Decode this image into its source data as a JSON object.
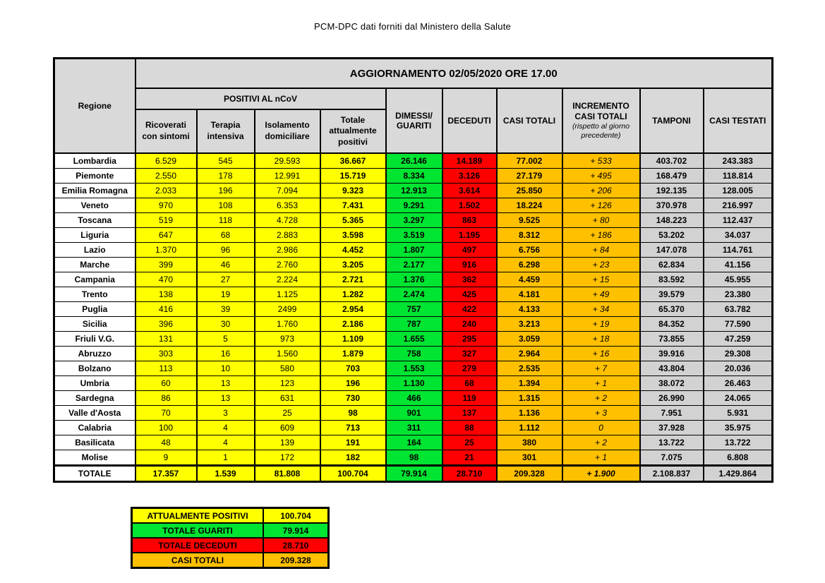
{
  "title": "PCM-DPC dati forniti dal Ministero della Salute",
  "colors": {
    "yellow": "#FFFF00",
    "green": "#00E432",
    "red": "#FF0000",
    "orange": "#FFC000",
    "gray": "#D2D2D2",
    "header_gray": "#D9D9D9"
  },
  "table": {
    "region_header": "Regione",
    "update_header": "AGGIORNAMENTO 02/05/2020 ORE 17.00",
    "positivi_group_header": "POSITIVI AL nCoV",
    "col_headers": {
      "ricoverati": "Ricoverati con sintomi",
      "terapia": "Terapia intensiva",
      "isolamento": "Isolamento domiciliare",
      "totale_positivi": "Totale attualmente positivi",
      "guariti": "DIMESSI/ GUARITI",
      "deceduti": "DECEDUTI",
      "casi_totali": "CASI TOTALI",
      "incremento": "INCREMENTO CASI TOTALI",
      "incremento_note": "(rispetto al giorno precedente)",
      "tamponi": "TAMPONI",
      "casi_testati": "CASI TESTATI"
    },
    "rows": [
      {
        "region": "Lombardia",
        "ricoverati": "6.529",
        "terapia": "545",
        "isolamento": "29.593",
        "totale_positivi": "36.667",
        "guariti": "26.146",
        "deceduti": "14.189",
        "casi_totali": "77.002",
        "incremento": "+ 533",
        "tamponi": "403.702",
        "casi_testati": "243.383"
      },
      {
        "region": "Piemonte",
        "ricoverati": "2.550",
        "terapia": "178",
        "isolamento": "12.991",
        "totale_positivi": "15.719",
        "guariti": "8.334",
        "deceduti": "3.126",
        "casi_totali": "27.179",
        "incremento": "+ 495",
        "tamponi": "168.479",
        "casi_testati": "118.814"
      },
      {
        "region": "Emilia Romagna",
        "ricoverati": "2.033",
        "terapia": "196",
        "isolamento": "7.094",
        "totale_positivi": "9.323",
        "guariti": "12.913",
        "deceduti": "3.614",
        "casi_totali": "25.850",
        "incremento": "+ 206",
        "tamponi": "192.135",
        "casi_testati": "128.005"
      },
      {
        "region": "Veneto",
        "ricoverati": "970",
        "terapia": "108",
        "isolamento": "6.353",
        "totale_positivi": "7.431",
        "guariti": "9.291",
        "deceduti": "1.502",
        "casi_totali": "18.224",
        "incremento": "+ 126",
        "tamponi": "370.978",
        "casi_testati": "216.997"
      },
      {
        "region": "Toscana",
        "ricoverati": "519",
        "terapia": "118",
        "isolamento": "4.728",
        "totale_positivi": "5.365",
        "guariti": "3.297",
        "deceduti": "863",
        "casi_totali": "9.525",
        "incremento": "+ 80",
        "tamponi": "148.223",
        "casi_testati": "112.437"
      },
      {
        "region": "Liguria",
        "ricoverati": "647",
        "terapia": "68",
        "isolamento": "2.883",
        "totale_positivi": "3.598",
        "guariti": "3.519",
        "deceduti": "1.195",
        "casi_totali": "8.312",
        "incremento": "+ 186",
        "tamponi": "53.202",
        "casi_testati": "34.037"
      },
      {
        "region": "Lazio",
        "ricoverati": "1.370",
        "terapia": "96",
        "isolamento": "2.986",
        "totale_positivi": "4.452",
        "guariti": "1.807",
        "deceduti": "497",
        "casi_totali": "6.756",
        "incremento": "+ 84",
        "tamponi": "147.078",
        "casi_testati": "114.761"
      },
      {
        "region": "Marche",
        "ricoverati": "399",
        "terapia": "46",
        "isolamento": "2.760",
        "totale_positivi": "3.205",
        "guariti": "2.177",
        "deceduti": "916",
        "casi_totali": "6.298",
        "incremento": "+ 23",
        "tamponi": "62.834",
        "casi_testati": "41.156"
      },
      {
        "region": "Campania",
        "ricoverati": "470",
        "terapia": "27",
        "isolamento": "2.224",
        "totale_positivi": "2.721",
        "guariti": "1.376",
        "deceduti": "362",
        "casi_totali": "4.459",
        "incremento": "+ 15",
        "tamponi": "83.592",
        "casi_testati": "45.955"
      },
      {
        "region": "Trento",
        "ricoverati": "138",
        "terapia": "19",
        "isolamento": "1.125",
        "totale_positivi": "1.282",
        "guariti": "2.474",
        "deceduti": "425",
        "casi_totali": "4.181",
        "incremento": "+ 49",
        "tamponi": "39.579",
        "casi_testati": "23.380"
      },
      {
        "region": "Puglia",
        "ricoverati": "416",
        "terapia": "39",
        "isolamento": "2499",
        "totale_positivi": "2.954",
        "guariti": "757",
        "deceduti": "422",
        "casi_totali": "4.133",
        "incremento": "+ 34",
        "tamponi": "65.370",
        "casi_testati": "63.782"
      },
      {
        "region": "Sicilia",
        "ricoverati": "396",
        "terapia": "30",
        "isolamento": "1.760",
        "totale_positivi": "2.186",
        "guariti": "787",
        "deceduti": "240",
        "casi_totali": "3.213",
        "incremento": "+ 19",
        "tamponi": "84.352",
        "casi_testati": "77.590"
      },
      {
        "region": "Friuli V.G.",
        "ricoverati": "131",
        "terapia": "5",
        "isolamento": "973",
        "totale_positivi": "1.109",
        "guariti": "1.655",
        "deceduti": "295",
        "casi_totali": "3.059",
        "incremento": "+ 18",
        "tamponi": "73.855",
        "casi_testati": "47.259"
      },
      {
        "region": "Abruzzo",
        "ricoverati": "303",
        "terapia": "16",
        "isolamento": "1.560",
        "totale_positivi": "1.879",
        "guariti": "758",
        "deceduti": "327",
        "casi_totali": "2.964",
        "incremento": "+ 16",
        "tamponi": "39.916",
        "casi_testati": "29.308"
      },
      {
        "region": "Bolzano",
        "ricoverati": "113",
        "terapia": "10",
        "isolamento": "580",
        "totale_positivi": "703",
        "guariti": "1.553",
        "deceduti": "279",
        "casi_totali": "2.535",
        "incremento": "+ 7",
        "tamponi": "43.804",
        "casi_testati": "20.036"
      },
      {
        "region": "Umbria",
        "ricoverati": "60",
        "terapia": "13",
        "isolamento": "123",
        "totale_positivi": "196",
        "guariti": "1.130",
        "deceduti": "68",
        "casi_totali": "1.394",
        "incremento": "+ 1",
        "tamponi": "38.072",
        "casi_testati": "26.463"
      },
      {
        "region": "Sardegna",
        "ricoverati": "86",
        "terapia": "13",
        "isolamento": "631",
        "totale_positivi": "730",
        "guariti": "466",
        "deceduti": "119",
        "casi_totali": "1.315",
        "incremento": "+ 2",
        "tamponi": "26.990",
        "casi_testati": "24.065"
      },
      {
        "region": "Valle d'Aosta",
        "ricoverati": "70",
        "terapia": "3",
        "isolamento": "25",
        "totale_positivi": "98",
        "guariti": "901",
        "deceduti": "137",
        "casi_totali": "1.136",
        "incremento": "+ 3",
        "tamponi": "7.951",
        "casi_testati": "5.931"
      },
      {
        "region": "Calabria",
        "ricoverati": "100",
        "terapia": "4",
        "isolamento": "609",
        "totale_positivi": "713",
        "guariti": "311",
        "deceduti": "88",
        "casi_totali": "1.112",
        "incremento": "0",
        "tamponi": "37.928",
        "casi_testati": "35.975"
      },
      {
        "region": "Basilicata",
        "ricoverati": "48",
        "terapia": "4",
        "isolamento": "139",
        "totale_positivi": "191",
        "guariti": "164",
        "deceduti": "25",
        "casi_totali": "380",
        "incremento": "+ 2",
        "tamponi": "13.722",
        "casi_testati": "13.722"
      },
      {
        "region": "Molise",
        "ricoverati": "9",
        "terapia": "1",
        "isolamento": "172",
        "totale_positivi": "182",
        "guariti": "98",
        "deceduti": "21",
        "casi_totali": "301",
        "incremento": "+ 1",
        "tamponi": "7.075",
        "casi_testati": "6.808"
      },
      {
        "region": "TOTALE",
        "ricoverati": "17.357",
        "terapia": "1.539",
        "isolamento": "81.808",
        "totale_positivi": "100.704",
        "guariti": "79.914",
        "deceduti": "28.710",
        "casi_totali": "209.328",
        "incremento": "+ 1.900",
        "tamponi": "2.108.837",
        "casi_testati": "1.429.864"
      }
    ]
  },
  "summary": {
    "rows": [
      {
        "label": "ATTUALMENTE POSITIVI",
        "value": "100.704",
        "color": "yellow"
      },
      {
        "label": "TOTALE GUARITI",
        "value": "79.914",
        "color": "green"
      },
      {
        "label": "TOTALE DECEDUTI",
        "value": "28.710",
        "color": "red"
      },
      {
        "label": "CASI TOTALI",
        "value": "209.328",
        "color": "orange"
      }
    ]
  }
}
